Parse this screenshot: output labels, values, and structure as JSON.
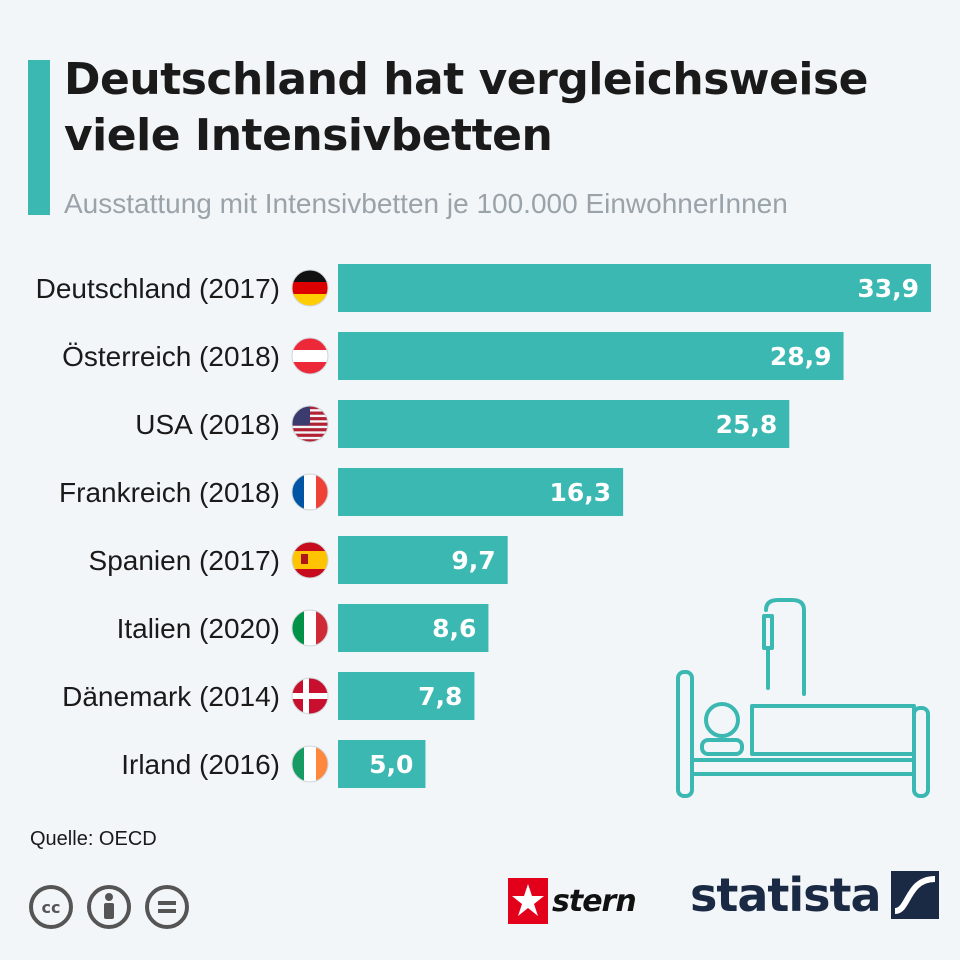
{
  "title": "Deutschland hat vergleichsweise viele Intensivbetten",
  "subtitle": "Ausstattung mit Intensivbetten je 100.000 EinwohnerInnen",
  "source": "Quelle: OECD",
  "brands": {
    "stern": "stern",
    "statista": "statista"
  },
  "colors": {
    "accent": "#3bb8b2",
    "brand_dark": "#1b2a44",
    "stern_red": "#e2001a"
  },
  "icons": [
    "cc-icon",
    "attribution-icon",
    "no-derivatives-icon",
    "hospital-bed-icon",
    "stern-star-icon",
    "statista-logo-icon"
  ],
  "chart_data": {
    "type": "bar",
    "orientation": "horizontal",
    "categories": [
      "Deutschland (2017)",
      "Österreich (2018)",
      "USA (2018)",
      "Frankreich (2018)",
      "Spanien (2017)",
      "Italien (2020)",
      "Dänemark (2014)",
      "Irland (2016)"
    ],
    "values": [
      33.9,
      28.9,
      25.8,
      16.3,
      9.7,
      8.6,
      7.8,
      5.0
    ],
    "value_labels": [
      "33,9",
      "28,9",
      "25,8",
      "16,3",
      "9,7",
      "8,6",
      "7,8",
      "5,0"
    ],
    "flags": [
      "germany-flag-icon",
      "austria-flag-icon",
      "usa-flag-icon",
      "france-flag-icon",
      "spain-flag-icon",
      "italy-flag-icon",
      "denmark-flag-icon",
      "ireland-flag-icon"
    ],
    "xlim": [
      0,
      33.9
    ],
    "grid": false,
    "legend": "none"
  }
}
